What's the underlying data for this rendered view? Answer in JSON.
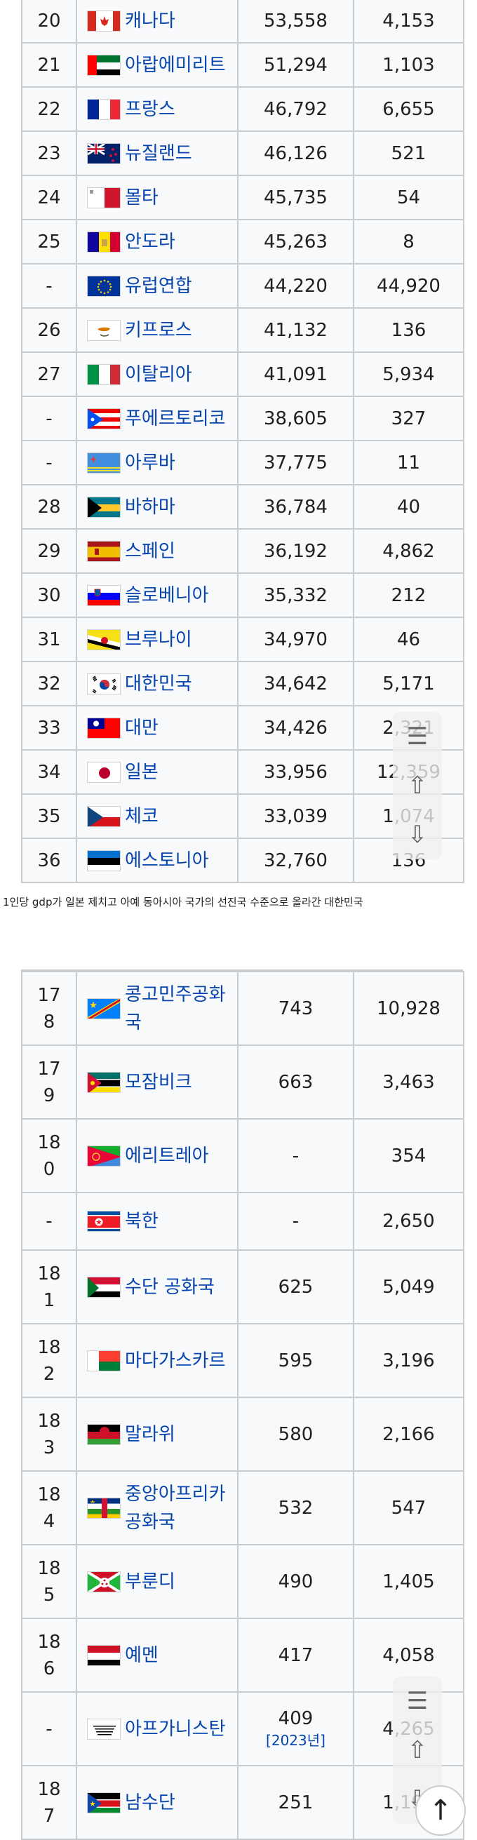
{
  "caption": "1인당 gdp가 일본 제치고 아예 동아시아 국가의 선진국 수준으로 올라간 대한민국",
  "top_table": [
    {
      "rank": "20",
      "country": "캐나다",
      "flag": "canada",
      "gdp": "53,558",
      "pop": "4,153"
    },
    {
      "rank": "21",
      "country": "아랍에미리트",
      "flag": "uae",
      "gdp": "51,294",
      "pop": "1,103"
    },
    {
      "rank": "22",
      "country": "프랑스",
      "flag": "france",
      "gdp": "46,792",
      "pop": "6,655"
    },
    {
      "rank": "23",
      "country": "뉴질랜드",
      "flag": "new-zealand",
      "gdp": "46,126",
      "pop": "521"
    },
    {
      "rank": "24",
      "country": "몰타",
      "flag": "malta",
      "gdp": "45,735",
      "pop": "54"
    },
    {
      "rank": "25",
      "country": "안도라",
      "flag": "andorra",
      "gdp": "45,263",
      "pop": "8"
    },
    {
      "rank": "-",
      "country": "유럽연합",
      "flag": "eu",
      "gdp": "44,220",
      "pop": "44,920"
    },
    {
      "rank": "26",
      "country": "키프로스",
      "flag": "cyprus",
      "gdp": "41,132",
      "pop": "136"
    },
    {
      "rank": "27",
      "country": "이탈리아",
      "flag": "italy",
      "gdp": "41,091",
      "pop": "5,934"
    },
    {
      "rank": "-",
      "country": "푸에르토리코",
      "flag": "puerto-rico",
      "gdp": "38,605",
      "pop": "327"
    },
    {
      "rank": "-",
      "country": "아루바",
      "flag": "aruba",
      "gdp": "37,775",
      "pop": "11"
    },
    {
      "rank": "28",
      "country": "바하마",
      "flag": "bahamas",
      "gdp": "36,784",
      "pop": "40"
    },
    {
      "rank": "29",
      "country": "스페인",
      "flag": "spain",
      "gdp": "36,192",
      "pop": "4,862"
    },
    {
      "rank": "30",
      "country": "슬로베니아",
      "flag": "slovenia",
      "gdp": "35,332",
      "pop": "212"
    },
    {
      "rank": "31",
      "country": "브루나이",
      "flag": "brunei",
      "gdp": "34,970",
      "pop": "46"
    },
    {
      "rank": "32",
      "country": "대한민국",
      "flag": "south-korea",
      "gdp": "34,642",
      "pop": "5,171"
    },
    {
      "rank": "33",
      "country": "대만",
      "flag": "taiwan",
      "gdp": "34,426",
      "pop": "2,321"
    },
    {
      "rank": "34",
      "country": "일본",
      "flag": "japan",
      "gdp": "33,956",
      "pop": "12,359"
    },
    {
      "rank": "35",
      "country": "체코",
      "flag": "czechia",
      "gdp": "33,039",
      "pop": "1,074"
    },
    {
      "rank": "36",
      "country": "에스토니아",
      "flag": "estonia",
      "gdp": "32,760",
      "pop": "136"
    }
  ],
  "bottom_table": [
    {
      "rank": "17\n8",
      "country": "콩고민주공화국",
      "flag": "dr-congo",
      "gdp": "743",
      "pop": "10,928"
    },
    {
      "rank": "17\n9",
      "country": "모잠비크",
      "flag": "mozambique",
      "gdp": "663",
      "pop": "3,463"
    },
    {
      "rank": "18\n0",
      "country": "에리트레아",
      "flag": "eritrea",
      "gdp": "-",
      "pop": "354"
    },
    {
      "rank": "-",
      "country": "북한",
      "flag": "north-korea",
      "gdp": "-",
      "pop": "2,650"
    },
    {
      "rank": "18\n1",
      "country": "수단 공화국",
      "flag": "sudan",
      "gdp": "625",
      "pop": "5,049"
    },
    {
      "rank": "18\n2",
      "country": "마다가스카르",
      "flag": "madagascar",
      "gdp": "595",
      "pop": "3,196"
    },
    {
      "rank": "18\n3",
      "country": "말라위",
      "flag": "malawi",
      "gdp": "580",
      "pop": "2,166"
    },
    {
      "rank": "18\n4",
      "country": "중앙아프리카공화국",
      "flag": "central-african-republic",
      "gdp": "532",
      "pop": "547"
    },
    {
      "rank": "18\n5",
      "country": "부룬디",
      "flag": "burundi",
      "gdp": "490",
      "pop": "1,405"
    },
    {
      "rank": "18\n6",
      "country": "예멘",
      "flag": "yemen",
      "gdp": "417",
      "pop": "4,058"
    },
    {
      "rank": "-",
      "country": "아프가니스탄",
      "flag": "afghanistan",
      "gdp": "409",
      "gdp_ref": "[2023년]",
      "pop": "4,265"
    },
    {
      "rank": "18\n7",
      "country": "남수단",
      "flag": "south-sudan",
      "gdp": "251",
      "pop": "1,194"
    }
  ],
  "tools": {
    "toc_icon": "list-icon",
    "up_icon": "arrow-up-icon",
    "down_icon": "arrow-down-icon",
    "scroll_top_icon": "scroll-to-top-icon"
  },
  "colors": {
    "link": "#0645ad",
    "border": "#c8ccd1",
    "cell_bg": "#f8f9fa"
  }
}
